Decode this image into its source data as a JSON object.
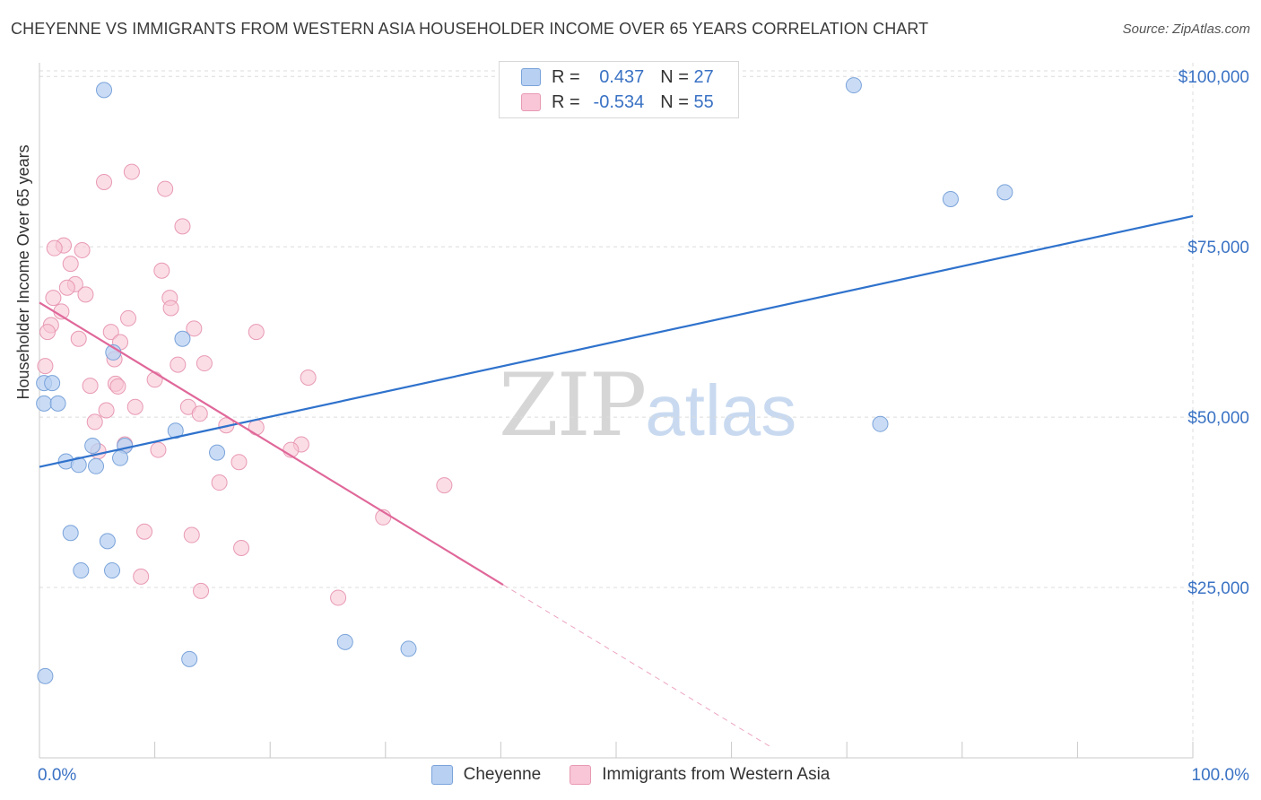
{
  "header": {
    "title": "CHEYENNE VS IMMIGRANTS FROM WESTERN ASIA HOUSEHOLDER INCOME OVER 65 YEARS CORRELATION CHART",
    "source_prefix": "Source:",
    "source_site": "ZipAtlas.com"
  },
  "watermark": {
    "zip": "ZIP",
    "atlas": "atlas"
  },
  "legend": {
    "r_label": "R =",
    "n_label": "N =",
    "cheyenne": {
      "r": "0.437",
      "n": "27"
    },
    "immigrants": {
      "r": "-0.534",
      "n": "55"
    }
  },
  "colors": {
    "cheyenne_fill": "#b8d0f2",
    "cheyenne_stroke": "#7aa3da",
    "cheyenne_line": "#2f72cc",
    "immigrants_fill": "#f8c6d6",
    "immigrants_stroke": "#e89ab3",
    "immigrants_line": "#e0689a",
    "tick_label": "#3a72c4"
  },
  "chart_data": {
    "type": "scatter",
    "title": "CHEYENNE VS IMMIGRANTS FROM WESTERN ASIA HOUSEHOLDER INCOME OVER 65 YEARS CORRELATION CHART",
    "xlabel": "",
    "ylabel": "Householder Income Over 65 years",
    "xlim": [
      0,
      100
    ],
    "ylim": [
      0,
      102000
    ],
    "x_tick_labels": [
      "0.0%",
      "100.0%"
    ],
    "y_ticks": [
      25000,
      50000,
      75000,
      100000
    ],
    "y_tick_labels": [
      "$25,000",
      "$50,000",
      "$75,000",
      "$100,000"
    ],
    "grid": "horizontal dashed",
    "legend_position": "top-center",
    "series": [
      {
        "name": "Cheyenne",
        "points": [
          [
            5.6,
            98000
          ],
          [
            0.4,
            55000
          ],
          [
            1.1,
            55000
          ],
          [
            0.4,
            52000
          ],
          [
            1.6,
            52000
          ],
          [
            6.4,
            59500
          ],
          [
            12.4,
            61500
          ],
          [
            11.8,
            48000
          ],
          [
            7.4,
            45800
          ],
          [
            4.6,
            45800
          ],
          [
            7.0,
            44000
          ],
          [
            2.3,
            43500
          ],
          [
            3.4,
            43000
          ],
          [
            4.9,
            42800
          ],
          [
            15.4,
            44800
          ],
          [
            2.7,
            33000
          ],
          [
            5.9,
            31800
          ],
          [
            3.6,
            27500
          ],
          [
            6.3,
            27500
          ],
          [
            13.0,
            14500
          ],
          [
            26.5,
            17000
          ],
          [
            32.0,
            16000
          ],
          [
            70.6,
            98700
          ],
          [
            79.0,
            82000
          ],
          [
            83.7,
            83000
          ],
          [
            72.9,
            49000
          ],
          [
            0.5,
            12000
          ]
        ],
        "trend": [
          [
            0,
            42700
          ],
          [
            100,
            79500
          ]
        ]
      },
      {
        "name": "Immigrants from Western Asia",
        "points": [
          [
            8.0,
            86000
          ],
          [
            5.6,
            84500
          ],
          [
            10.9,
            83500
          ],
          [
            12.4,
            78000
          ],
          [
            2.1,
            75200
          ],
          [
            1.3,
            74800
          ],
          [
            3.7,
            74500
          ],
          [
            2.7,
            72500
          ],
          [
            10.6,
            71500
          ],
          [
            3.1,
            69500
          ],
          [
            2.4,
            69000
          ],
          [
            4.0,
            68000
          ],
          [
            1.2,
            67500
          ],
          [
            11.3,
            67500
          ],
          [
            1.9,
            65500
          ],
          [
            11.4,
            66000
          ],
          [
            7.7,
            64500
          ],
          [
            1.0,
            63500
          ],
          [
            0.7,
            62500
          ],
          [
            13.4,
            63000
          ],
          [
            18.8,
            62500
          ],
          [
            6.2,
            62500
          ],
          [
            3.4,
            61500
          ],
          [
            7.0,
            61000
          ],
          [
            6.5,
            58500
          ],
          [
            12.0,
            57700
          ],
          [
            14.3,
            57900
          ],
          [
            0.5,
            57500
          ],
          [
            23.3,
            55800
          ],
          [
            6.6,
            54900
          ],
          [
            10.0,
            55500
          ],
          [
            6.8,
            54500
          ],
          [
            4.4,
            54600
          ],
          [
            8.3,
            51500
          ],
          [
            12.9,
            51500
          ],
          [
            5.8,
            51000
          ],
          [
            13.9,
            50500
          ],
          [
            4.8,
            49300
          ],
          [
            16.2,
            48800
          ],
          [
            18.8,
            48500
          ],
          [
            7.4,
            46000
          ],
          [
            22.7,
            46000
          ],
          [
            5.1,
            45000
          ],
          [
            10.3,
            45200
          ],
          [
            21.8,
            45200
          ],
          [
            17.3,
            43400
          ],
          [
            15.6,
            40400
          ],
          [
            35.1,
            40000
          ],
          [
            29.8,
            35300
          ],
          [
            9.1,
            33200
          ],
          [
            13.2,
            32700
          ],
          [
            17.5,
            30800
          ],
          [
            8.8,
            26600
          ],
          [
            14.0,
            24500
          ],
          [
            25.9,
            23500
          ]
        ],
        "trend_solid": [
          [
            0,
            66800
          ],
          [
            40.2,
            25400
          ]
        ],
        "trend_dashed": [
          [
            40.2,
            25400
          ],
          [
            63.5,
            1500
          ]
        ]
      }
    ]
  },
  "bottom_legend": {
    "cheyenne": "Cheyenne",
    "immigrants": "Immigrants from Western Asia"
  }
}
